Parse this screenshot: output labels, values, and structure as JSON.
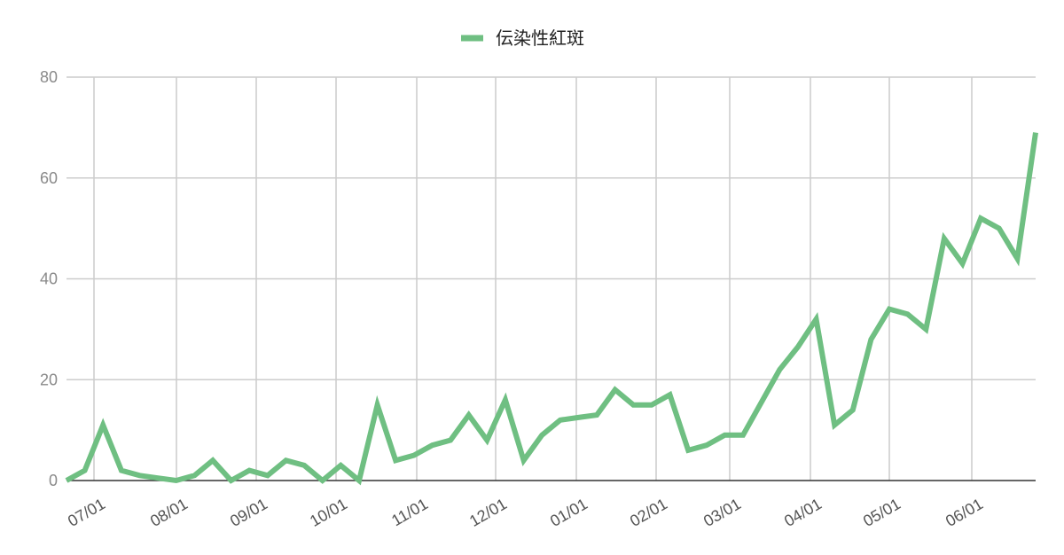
{
  "chart_data": {
    "type": "line",
    "legend_position": "top-center",
    "grid": true,
    "ylim": [
      0,
      80
    ],
    "yticks": [
      "0",
      "20",
      "40",
      "60",
      "80"
    ],
    "xticks": [
      "07/01",
      "08/01",
      "09/01",
      "10/01",
      "11/01",
      "12/01",
      "01/01",
      "02/01",
      "03/01",
      "04/01",
      "05/01",
      "06/01"
    ],
    "series": [
      {
        "name": "伝染性紅斑",
        "color": "#6fbf82",
        "values": [
          0,
          2,
          11,
          2,
          1,
          0.5,
          0,
          1,
          4,
          0,
          2,
          1,
          4,
          3,
          0,
          3,
          0,
          15,
          4,
          5,
          7,
          8,
          13,
          8,
          16,
          4,
          9,
          12,
          12.5,
          13,
          18,
          15,
          15,
          17,
          6,
          7,
          9,
          9,
          15.5,
          22,
          26.5,
          32,
          11,
          14,
          28,
          34,
          33,
          30,
          48,
          43,
          52,
          50,
          44,
          69
        ]
      }
    ]
  }
}
